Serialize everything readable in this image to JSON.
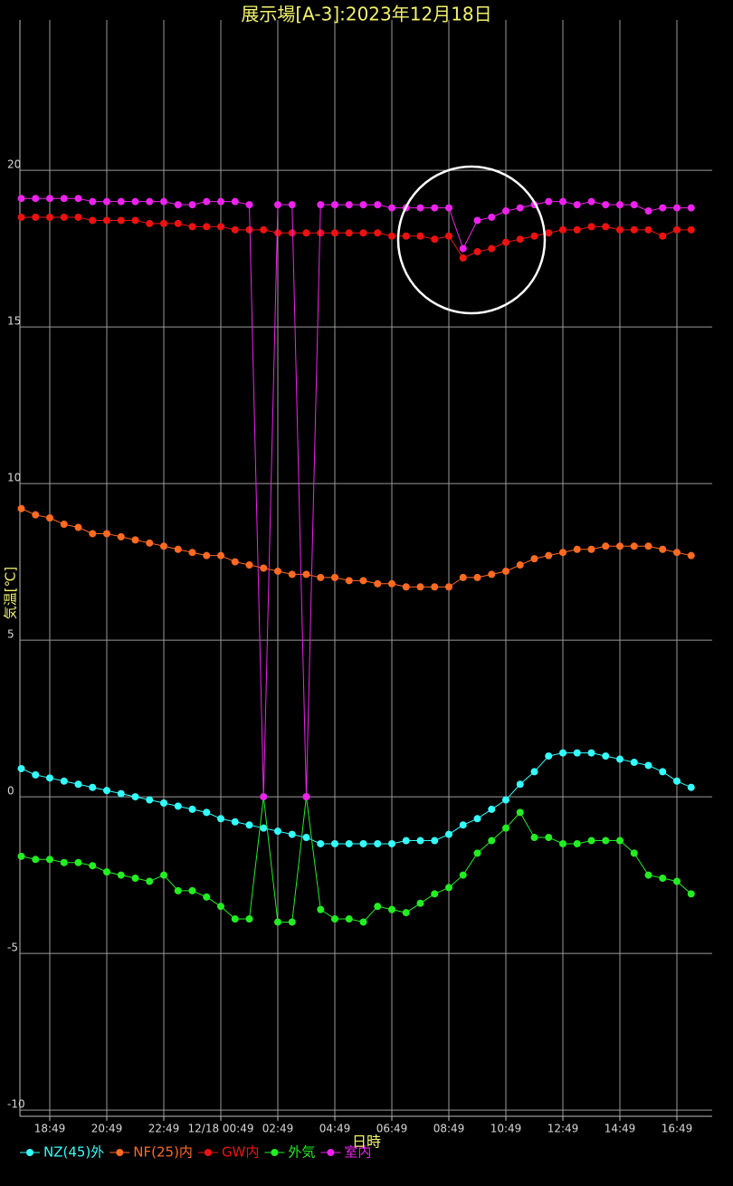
{
  "chart_data": {
    "type": "line",
    "title": "展示場[A-3]:2023年12月18日",
    "x_label": "日時",
    "y_label": "気温[℃]",
    "categories": [
      null,
      null,
      "18:49",
      null,
      null,
      null,
      "20:49",
      null,
      null,
      null,
      "22:49",
      null,
      null,
      null,
      "12/18 00:49",
      null,
      null,
      null,
      "02:49",
      null,
      null,
      null,
      "04:49",
      null,
      null,
      null,
      "06:49",
      null,
      null,
      null,
      "08:49",
      null,
      null,
      null,
      "10:49",
      null,
      null,
      null,
      "12:49",
      null,
      null,
      null,
      "14:49",
      null,
      null,
      null,
      "16:49",
      null
    ],
    "ylim": [
      -10.2,
      24.8
    ],
    "yticks": [
      20,
      15,
      10,
      5,
      0,
      -5,
      -10
    ],
    "grid": true,
    "legend": "bottom",
    "series": [
      {
        "name": "NZ(45)外",
        "color": "#33ffff",
        "values": [
          0.9,
          0.7,
          0.6,
          0.5,
          0.4,
          0.3,
          0.2,
          0.1,
          0.0,
          -0.1,
          -0.2,
          -0.3,
          -0.4,
          -0.5,
          -0.7,
          -0.8,
          -0.9,
          -1.0,
          -1.1,
          -1.2,
          -1.3,
          -1.5,
          -1.5,
          -1.5,
          -1.5,
          -1.5,
          -1.5,
          -1.4,
          -1.4,
          -1.4,
          -1.2,
          -0.9,
          -0.7,
          -0.4,
          -0.1,
          0.4,
          0.8,
          1.3,
          1.4,
          1.4,
          1.4,
          1.3,
          1.2,
          1.1,
          1.0,
          0.8,
          0.5,
          0.3
        ]
      },
      {
        "name": "NF(25)内",
        "color": "#ff6a22",
        "values": [
          9.2,
          9.0,
          8.9,
          8.7,
          8.6,
          8.4,
          8.4,
          8.3,
          8.2,
          8.1,
          8.0,
          7.9,
          7.8,
          7.7,
          7.7,
          7.5,
          7.4,
          7.3,
          7.2,
          7.1,
          7.1,
          7.0,
          7.0,
          6.9,
          6.9,
          6.8,
          6.8,
          6.7,
          6.7,
          6.7,
          6.7,
          7.0,
          7.0,
          7.1,
          7.2,
          7.4,
          7.6,
          7.7,
          7.8,
          7.9,
          7.9,
          8.0,
          8.0,
          8.0,
          8.0,
          7.9,
          7.8,
          7.7
        ]
      },
      {
        "name": "GW内",
        "color": "#ee1111",
        "values": [
          18.5,
          18.5,
          18.5,
          18.5,
          18.5,
          18.4,
          18.4,
          18.4,
          18.4,
          18.3,
          18.3,
          18.3,
          18.2,
          18.2,
          18.2,
          18.1,
          18.1,
          18.1,
          18.0,
          18.0,
          18.0,
          18.0,
          18.0,
          18.0,
          18.0,
          18.0,
          17.9,
          17.9,
          17.9,
          17.8,
          17.9,
          17.2,
          17.4,
          17.5,
          17.7,
          17.8,
          17.9,
          18.0,
          18.1,
          18.1,
          18.2,
          18.2,
          18.1,
          18.1,
          18.1,
          17.9,
          18.1,
          18.1
        ]
      },
      {
        "name": "外気",
        "color": "#22ee22",
        "values": [
          -1.9,
          -2.0,
          -2.0,
          -2.1,
          -2.1,
          -2.2,
          -2.4,
          -2.5,
          -2.6,
          -2.7,
          -2.5,
          -3.0,
          -3.0,
          -3.2,
          -3.5,
          -3.9,
          -3.9,
          0,
          -4.0,
          -4.0,
          0,
          -3.6,
          -3.9,
          -3.9,
          -4.0,
          -3.5,
          -3.6,
          -3.7,
          -3.4,
          -3.1,
          -2.9,
          -2.5,
          -1.8,
          -1.4,
          -1.0,
          -0.5,
          -1.3,
          -1.3,
          -1.5,
          -1.5,
          -1.4,
          -1.4,
          -1.4,
          -1.8,
          -2.5,
          -2.6,
          -2.7,
          -3.1
        ]
      },
      {
        "name": "室内",
        "color": "#ee22ee",
        "values": [
          19.1,
          19.1,
          19.1,
          19.1,
          19.1,
          19.0,
          19.0,
          19.0,
          19.0,
          19.0,
          19.0,
          18.9,
          18.9,
          19.0,
          19.0,
          19.0,
          18.9,
          0,
          18.9,
          18.9,
          0,
          18.9,
          18.9,
          18.9,
          18.9,
          18.9,
          18.8,
          18.8,
          18.8,
          18.8,
          18.8,
          17.5,
          18.4,
          18.5,
          18.7,
          18.8,
          18.9,
          19.0,
          19.0,
          18.9,
          19.0,
          18.9,
          18.9,
          18.9,
          18.7,
          18.8,
          18.8,
          18.8
        ]
      }
    ]
  }
}
